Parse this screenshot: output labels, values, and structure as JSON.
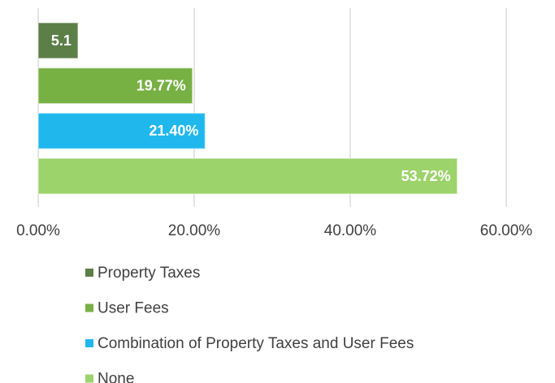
{
  "chart_data": {
    "type": "bar",
    "series": [
      {
        "name": "Property Taxes",
        "color": "#5b7f47",
        "values": [
          5.1
        ],
        "value_labels": [
          "5.1"
        ]
      },
      {
        "name": "User Fees",
        "color": "#77b043",
        "values": [
          19.77
        ],
        "value_labels": [
          "19.77%"
        ]
      },
      {
        "name": "Combination of Property Taxes and User Fees",
        "color": "#20b8ec",
        "values": [
          21.4
        ],
        "value_labels": [
          "21.40%"
        ]
      },
      {
        "name": "None",
        "color": "#9dd36b",
        "values": [
          53.72
        ],
        "value_labels": [
          "53.72%"
        ]
      }
    ],
    "xlim": [
      0,
      60
    ],
    "xticks": [
      {
        "value": 0,
        "label": "0.00%"
      },
      {
        "value": 20,
        "label": "20.00%"
      },
      {
        "value": 40,
        "label": "40.00%"
      },
      {
        "value": 60,
        "label": "60.00%"
      }
    ],
    "grid": true
  }
}
